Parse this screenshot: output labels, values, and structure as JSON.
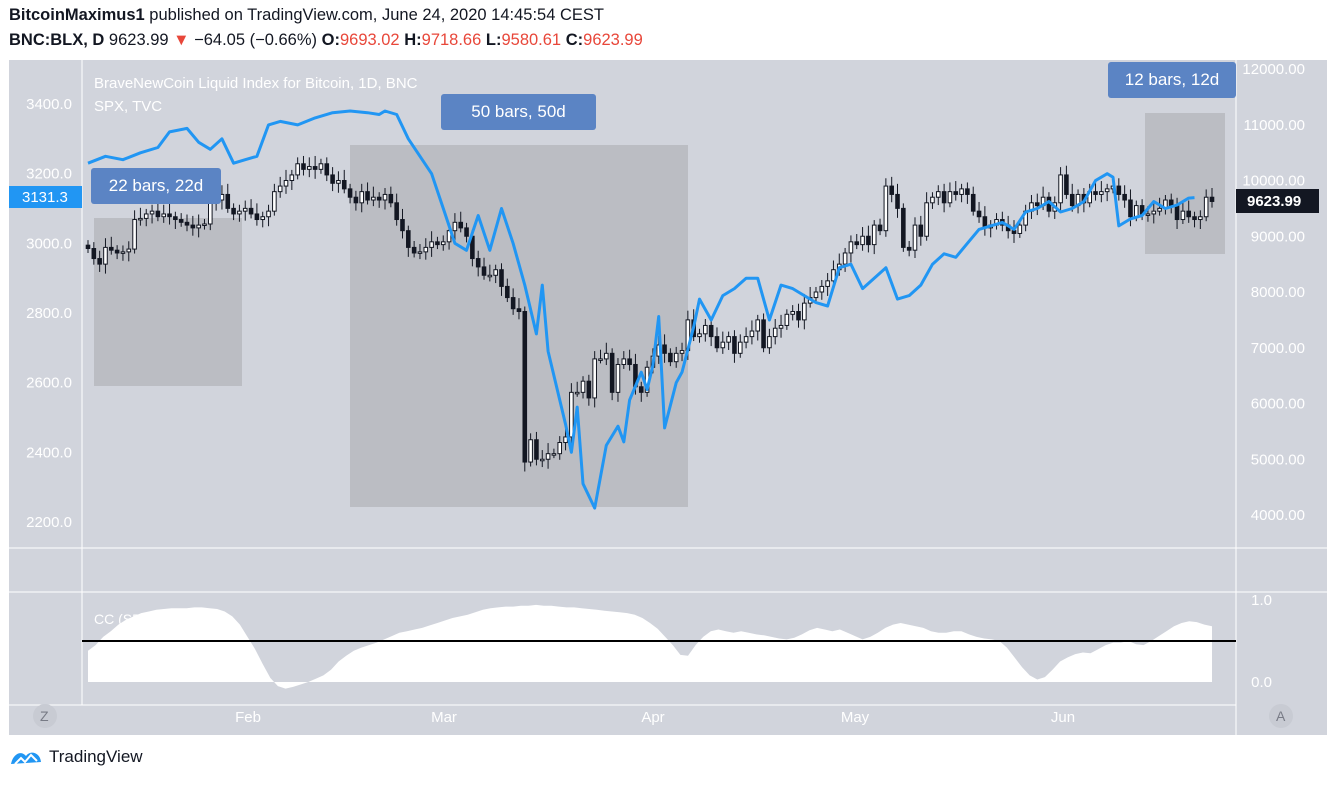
{
  "header": {
    "author": "BitcoinMaximus1",
    "published": "published on TradingView.com, June 24, 2020 14:45:54 CEST",
    "symbol": "BNC:BLX, D",
    "last": "9623.99",
    "arrow": "▼",
    "change": "−64.05 (−0.66%)",
    "o_label": "O:",
    "o_val": "9693.02",
    "h_label": "H:",
    "h_val": "9718.66",
    "l_label": "L:",
    "l_val": "9580.61",
    "c_label": "C:",
    "c_val": "9623.99"
  },
  "footer": {
    "brand": "TradingView"
  },
  "colors": {
    "pane_bg": "#d1d4dc",
    "spx_line": "#2196f3",
    "box_fill": "#bbbdc3",
    "box_label": "#5b84c4",
    "price_tag": "#131722",
    "spx_tag": "#2196f3"
  },
  "chart_data": {
    "type": "candlestick",
    "title": "BraveNewCoin Liquid Index for Bitcoin, 1D, BNC",
    "overlay_label": "SPX, TVC",
    "left_axis_ticks": [
      "3400.0",
      "3200.0",
      "3000.0",
      "2800.0",
      "2600.0",
      "2400.0",
      "2200.0"
    ],
    "left_axis_values": [
      3400,
      3200,
      3000,
      2800,
      2600,
      2400,
      2200
    ],
    "right_axis_ticks": [
      "12000.00",
      "11000.00",
      "10000.00",
      "9000.00",
      "8000.00",
      "7000.00",
      "6000.00",
      "5000.00",
      "4000.00"
    ],
    "right_axis_values": [
      12000,
      11000,
      10000,
      9000,
      8000,
      7000,
      6000,
      5000,
      4000
    ],
    "x_labels": [
      "Feb",
      "Mar",
      "Apr",
      "May",
      "Jun"
    ],
    "last_price_tag": "9623.99",
    "spx_tag": "3131.3",
    "btc_closes": [
      8780,
      8600,
      8500,
      8800,
      8750,
      8700,
      8720,
      8770,
      9300,
      9320,
      9400,
      9450,
      9350,
      9400,
      9350,
      9300,
      9250,
      9200,
      9150,
      9200,
      9220,
      9600,
      9650,
      9750,
      9500,
      9400,
      9450,
      9500,
      9400,
      9300,
      9350,
      9450,
      9800,
      9900,
      10000,
      10100,
      10300,
      10200,
      10250,
      10200,
      10300,
      10100,
      9950,
      10000,
      9850,
      9700,
      9600,
      9800,
      9650,
      9700,
      9650,
      9750,
      9600,
      9300,
      9100,
      8800,
      8700,
      8720,
      8800,
      8900,
      8850,
      8900,
      9100,
      9250,
      9150,
      9000,
      8600,
      8450,
      8300,
      8300,
      8400,
      8100,
      7900,
      7700,
      7650,
      4950,
      5350,
      5000,
      5000,
      5100,
      5100,
      5300,
      5400,
      6200,
      6200,
      6400,
      6100,
      6800,
      6800,
      6900,
      6200,
      6700,
      6800,
      6700,
      6300,
      6200,
      6650,
      6850,
      7050,
      6900,
      6750,
      6900,
      6950,
      7500,
      7200,
      7250,
      7400,
      7200,
      7000,
      7100,
      7200,
      6900,
      7100,
      7200,
      7300,
      7500,
      7000,
      7200,
      7350,
      7400,
      7600,
      7650,
      7500,
      7800,
      7900,
      8000,
      8100,
      8200,
      8400,
      8500,
      8700,
      8900,
      8850,
      9000,
      8850,
      9200,
      9100,
      9900,
      9750,
      9500,
      8800,
      8750,
      9200,
      9000,
      9600,
      9700,
      9800,
      9600,
      9800,
      9750,
      9850,
      9750,
      9450,
      9350,
      9150,
      9200,
      9300,
      9200,
      9100,
      9050,
      9200,
      9450,
      9600,
      9550,
      9700,
      9450,
      9600,
      10100,
      9750,
      9550,
      9750,
      9600,
      9800,
      9750,
      9800,
      9850,
      9900,
      9750,
      9650,
      9350,
      9550,
      9400,
      9400,
      9450,
      9500,
      9650,
      9550,
      9300,
      9450,
      9350,
      9300,
      9350,
      9700,
      9623.99
    ],
    "spx": [
      {
        "i": 0,
        "v": 3230
      },
      {
        "i": 3,
        "v": 3250
      },
      {
        "i": 6,
        "v": 3240
      },
      {
        "i": 9,
        "v": 3260
      },
      {
        "i": 12,
        "v": 3275
      },
      {
        "i": 14,
        "v": 3320
      },
      {
        "i": 17,
        "v": 3330
      },
      {
        "i": 19,
        "v": 3290
      },
      {
        "i": 21,
        "v": 3270
      },
      {
        "i": 23,
        "v": 3300
      },
      {
        "i": 25,
        "v": 3230
      },
      {
        "i": 27,
        "v": 3240
      },
      {
        "i": 29,
        "v": 3250
      },
      {
        "i": 31,
        "v": 3340
      },
      {
        "i": 33,
        "v": 3350
      },
      {
        "i": 36,
        "v": 3340
      },
      {
        "i": 39,
        "v": 3360
      },
      {
        "i": 42,
        "v": 3375
      },
      {
        "i": 45,
        "v": 3380
      },
      {
        "i": 48,
        "v": 3375
      },
      {
        "i": 50,
        "v": 3370
      },
      {
        "i": 51,
        "v": 3380
      },
      {
        "i": 53,
        "v": 3370
      },
      {
        "i": 55,
        "v": 3300
      },
      {
        "i": 57,
        "v": 3250
      },
      {
        "i": 59,
        "v": 3200
      },
      {
        "i": 61,
        "v": 3100
      },
      {
        "i": 63,
        "v": 3000
      },
      {
        "i": 65,
        "v": 2980
      },
      {
        "i": 67,
        "v": 3080
      },
      {
        "i": 69,
        "v": 2980
      },
      {
        "i": 71,
        "v": 3100
      },
      {
        "i": 73,
        "v": 3000
      },
      {
        "i": 75,
        "v": 2880
      },
      {
        "i": 77,
        "v": 2740
      },
      {
        "i": 78,
        "v": 2880
      },
      {
        "i": 79,
        "v": 2690
      },
      {
        "i": 82,
        "v": 2480
      },
      {
        "i": 83,
        "v": 2400
      },
      {
        "i": 84,
        "v": 2530
      },
      {
        "i": 85,
        "v": 2310
      },
      {
        "i": 87,
        "v": 2240
      },
      {
        "i": 89,
        "v": 2420
      },
      {
        "i": 91,
        "v": 2475
      },
      {
        "i": 92,
        "v": 2430
      },
      {
        "i": 93,
        "v": 2550
      },
      {
        "i": 95,
        "v": 2630
      },
      {
        "i": 96,
        "v": 2580
      },
      {
        "i": 97,
        "v": 2650
      },
      {
        "i": 98,
        "v": 2790
      },
      {
        "i": 99,
        "v": 2470
      },
      {
        "i": 101,
        "v": 2600
      },
      {
        "i": 102,
        "v": 2630
      },
      {
        "i": 104,
        "v": 2760
      },
      {
        "i": 105,
        "v": 2840
      },
      {
        "i": 107,
        "v": 2780
      },
      {
        "i": 109,
        "v": 2850
      },
      {
        "i": 111,
        "v": 2870
      },
      {
        "i": 113,
        "v": 2900
      },
      {
        "i": 115,
        "v": 2900
      },
      {
        "i": 117,
        "v": 2780
      },
      {
        "i": 119,
        "v": 2880
      },
      {
        "i": 121,
        "v": 2870
      },
      {
        "i": 123,
        "v": 2850
      },
      {
        "i": 125,
        "v": 2830
      },
      {
        "i": 127,
        "v": 2820
      },
      {
        "i": 129,
        "v": 2930
      },
      {
        "i": 131,
        "v": 2940
      },
      {
        "i": 133,
        "v": 2870
      },
      {
        "i": 135,
        "v": 2900
      },
      {
        "i": 137,
        "v": 2930
      },
      {
        "i": 139,
        "v": 2840
      },
      {
        "i": 141,
        "v": 2850
      },
      {
        "i": 143,
        "v": 2880
      },
      {
        "i": 145,
        "v": 2940
      },
      {
        "i": 147,
        "v": 2970
      },
      {
        "i": 149,
        "v": 2960
      },
      {
        "i": 151,
        "v": 3000
      },
      {
        "i": 153,
        "v": 3040
      },
      {
        "i": 155,
        "v": 3050
      },
      {
        "i": 157,
        "v": 3060
      },
      {
        "i": 159,
        "v": 3040
      },
      {
        "i": 161,
        "v": 3090
      },
      {
        "i": 163,
        "v": 3100
      },
      {
        "i": 165,
        "v": 3120
      },
      {
        "i": 167,
        "v": 3090
      },
      {
        "i": 169,
        "v": 3100
      },
      {
        "i": 171,
        "v": 3120
      },
      {
        "i": 173,
        "v": 3180
      },
      {
        "i": 175,
        "v": 3200
      },
      {
        "i": 176,
        "v": 3190
      },
      {
        "i": 177,
        "v": 3050
      },
      {
        "i": 179,
        "v": 3070
      },
      {
        "i": 181,
        "v": 3080
      },
      {
        "i": 183,
        "v": 3120
      },
      {
        "i": 185,
        "v": 3100
      },
      {
        "i": 187,
        "v": 3110
      },
      {
        "i": 189,
        "v": 3130
      },
      {
        "i": 190,
        "v": 3131.3
      }
    ],
    "cc_label": "CC (SPX, TVC, 20)",
    "cc_axis_ticks": [
      "1.0",
      "0.0"
    ],
    "cc_axis_values": [
      1.0,
      0.0
    ],
    "cc_level": 0.5,
    "cc_values": [
      0.38,
      0.45,
      0.55,
      0.62,
      0.7,
      0.76,
      0.8,
      0.84,
      0.86,
      0.88,
      0.89,
      0.9,
      0.9,
      0.9,
      0.91,
      0.91,
      0.9,
      0.89,
      0.86,
      0.8,
      0.7,
      0.55,
      0.4,
      0.22,
      0.05,
      -0.05,
      -0.08,
      -0.06,
      -0.03,
      0.0,
      0.04,
      0.08,
      0.15,
      0.25,
      0.32,
      0.38,
      0.42,
      0.45,
      0.48,
      0.52,
      0.56,
      0.6,
      0.62,
      0.64,
      0.66,
      0.69,
      0.72,
      0.75,
      0.78,
      0.8,
      0.82,
      0.85,
      0.88,
      0.9,
      0.91,
      0.92,
      0.92,
      0.93,
      0.93,
      0.94,
      0.93,
      0.93,
      0.92,
      0.91,
      0.91,
      0.9,
      0.89,
      0.88,
      0.87,
      0.86,
      0.85,
      0.84,
      0.82,
      0.78,
      0.72,
      0.65,
      0.55,
      0.45,
      0.33,
      0.32,
      0.45,
      0.55,
      0.62,
      0.64,
      0.62,
      0.6,
      0.62,
      0.6,
      0.58,
      0.57,
      0.55,
      0.53,
      0.52,
      0.54,
      0.58,
      0.63,
      0.66,
      0.64,
      0.62,
      0.64,
      0.6,
      0.56,
      0.52,
      0.55,
      0.6,
      0.66,
      0.7,
      0.72,
      0.7,
      0.68,
      0.66,
      0.62,
      0.6,
      0.6,
      0.62,
      0.62,
      0.58,
      0.55,
      0.53,
      0.52,
      0.5,
      0.42,
      0.3,
      0.18,
      0.08,
      0.03,
      0.06,
      0.15,
      0.25,
      0.3,
      0.34,
      0.36,
      0.35,
      0.4,
      0.45,
      0.48,
      0.48,
      0.5,
      0.46,
      0.45,
      0.5,
      0.56,
      0.62,
      0.68,
      0.72,
      0.74,
      0.73,
      0.7,
      0.68
    ]
  },
  "boxes": [
    {
      "label": "22 bars, 22d"
    },
    {
      "label": "50 bars, 50d"
    },
    {
      "label": "12 bars, 12d"
    }
  ],
  "nav": {
    "left_btn": "Z",
    "right_btn": "A"
  }
}
